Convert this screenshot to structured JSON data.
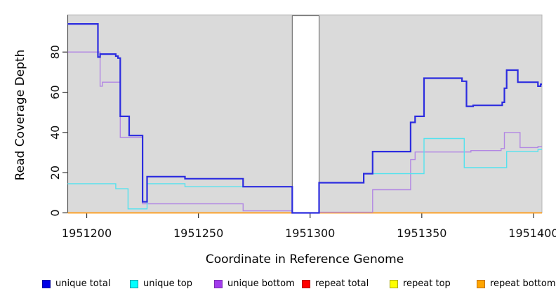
{
  "chart_data": {
    "type": "line",
    "step": "after",
    "title": "",
    "xlabel": "Coordinate in Reference Genome",
    "ylabel": "Read Coverage Depth",
    "xlim": [
      1951191.5,
      1951403.8
    ],
    "ylim": [
      0,
      98.5
    ],
    "x_ticks": [
      1951200,
      1951250,
      1951300,
      1951350,
      1951400
    ],
    "y_ticks": [
      0,
      20,
      40,
      60,
      80
    ],
    "grid": false,
    "plot_bg": "#dadada",
    "no_data_band": {
      "from": 1951292,
      "to": 1951304
    },
    "series": [
      {
        "name": "repeat total",
        "id": "repeat-total",
        "color": "#e00000",
        "width": 1.2,
        "points": [
          [
            1951191.5,
            0
          ],
          [
            1951292,
            null
          ],
          [
            1951304,
            0
          ]
        ]
      },
      {
        "name": "repeat top",
        "id": "repeat-top",
        "color": "#f2f200",
        "width": 1.2,
        "points": [
          [
            1951191.5,
            0
          ],
          [
            1951292,
            null
          ],
          [
            1951304,
            0
          ]
        ]
      },
      {
        "name": "repeat bottom",
        "id": "repeat-bottom",
        "color": "#ff9e1e",
        "width": 1.8,
        "points": [
          [
            1951191.5,
            0
          ],
          [
            1951292,
            null
          ],
          [
            1951304,
            0
          ]
        ]
      },
      {
        "name": "unique bottom",
        "id": "unique-bottom",
        "color": "#b287e3",
        "width": 1.4,
        "points": [
          [
            1951191.5,
            80
          ],
          [
            1951206,
            63
          ],
          [
            1951207,
            65
          ],
          [
            1951215,
            37.5
          ],
          [
            1951225,
            4.5
          ],
          [
            1951270,
            1
          ],
          [
            1951292,
            null
          ],
          [
            1951304,
            0.3
          ],
          [
            1951328,
            11.5
          ],
          [
            1951345,
            26.5
          ],
          [
            1951347,
            30.3
          ],
          [
            1951372,
            31
          ],
          [
            1951385.5,
            32
          ],
          [
            1951387,
            40
          ],
          [
            1951394,
            32.5
          ],
          [
            1951402,
            33
          ]
        ]
      },
      {
        "name": "unique top",
        "id": "unique-top",
        "color": "#55e2ee",
        "width": 1.4,
        "points": [
          [
            1951191.5,
            14.5
          ],
          [
            1951213,
            12
          ],
          [
            1951218.5,
            2
          ],
          [
            1951227,
            14.5
          ],
          [
            1951244,
            13
          ],
          [
            1951292,
            null
          ],
          [
            1951304,
            15
          ],
          [
            1951324,
            19.5
          ],
          [
            1951351,
            37
          ],
          [
            1951369,
            22.5
          ],
          [
            1951388,
            30.5
          ],
          [
            1951402,
            31.5
          ]
        ]
      },
      {
        "name": "unique total",
        "id": "unique-total",
        "color": "#2c2cdf",
        "width": 2.2,
        "points": [
          [
            1951191.5,
            94
          ],
          [
            1951205,
            77.5
          ],
          [
            1951206,
            79
          ],
          [
            1951213,
            78
          ],
          [
            1951214,
            77
          ],
          [
            1951215,
            48
          ],
          [
            1951219,
            38.5
          ],
          [
            1951225,
            5.5
          ],
          [
            1951227,
            18
          ],
          [
            1951244,
            17
          ],
          [
            1951270,
            13
          ],
          [
            1951292,
            0
          ],
          [
            1951304,
            15
          ],
          [
            1951324,
            19.5
          ],
          [
            1951328,
            30.5
          ],
          [
            1951345,
            45
          ],
          [
            1951347,
            48
          ],
          [
            1951351,
            67
          ],
          [
            1951368,
            65.5
          ],
          [
            1951370,
            53
          ],
          [
            1951373,
            53.5
          ],
          [
            1951386,
            55
          ],
          [
            1951387,
            62
          ],
          [
            1951388,
            71
          ],
          [
            1951393,
            65
          ],
          [
            1951402,
            63
          ],
          [
            1951403.2,
            64
          ]
        ]
      }
    ]
  },
  "legend": {
    "items": [
      {
        "id": "unique-total",
        "label": "unique total",
        "fill": "#0000e6",
        "border": "#0000a0"
      },
      {
        "id": "unique-top",
        "label": "unique top",
        "fill": "#00ffff",
        "border": "#009aa0"
      },
      {
        "id": "unique-bottom",
        "label": "unique bottom",
        "fill": "#a23bec",
        "border": "#7a2db0"
      },
      {
        "id": "repeat-total",
        "label": "repeat total",
        "fill": "#ff0000",
        "border": "#b00000"
      },
      {
        "id": "repeat-top",
        "label": "repeat top",
        "fill": "#ffff00",
        "border": "#aaaa00"
      },
      {
        "id": "repeat-bottom",
        "label": "repeat bottom",
        "fill": "#ffa500",
        "border": "#c07000"
      }
    ]
  }
}
